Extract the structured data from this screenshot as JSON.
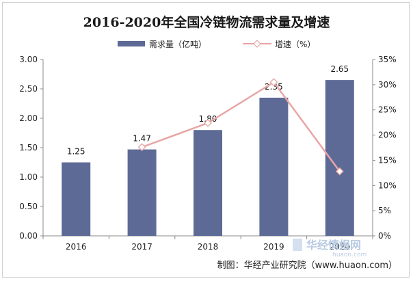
{
  "chart_data": {
    "type": "bar+line",
    "title": "2016-2020年全国冷链物流需求量及增速",
    "categories": [
      "2016",
      "2017",
      "2018",
      "2019",
      "2020"
    ],
    "series": [
      {
        "name": "需求量（亿吨）",
        "type": "bar",
        "axis": "left",
        "values": [
          1.25,
          1.47,
          1.8,
          2.35,
          2.65
        ],
        "labels": [
          "1.25",
          "1.47",
          "1.80",
          "2.35",
          "2.65"
        ],
        "color": "#5e6a96"
      },
      {
        "name": "增速（%）",
        "type": "line",
        "axis": "right",
        "values": [
          null,
          17.6,
          22.4,
          30.5,
          12.8
        ],
        "color": "#e8a5a5"
      }
    ],
    "y_left": {
      "min": 0,
      "max": 3.0,
      "ticks": [
        "0.00",
        "0.50",
        "1.00",
        "1.50",
        "2.00",
        "2.50",
        "3.00"
      ]
    },
    "y_right": {
      "min": 0,
      "max": 35,
      "ticks": [
        "0%",
        "5%",
        "10%",
        "15%",
        "20%",
        "25%",
        "30%",
        "35%"
      ]
    },
    "legend_position": "top",
    "grid": false
  },
  "source_text": "制图：华经产业研究院（www.huaon.com）",
  "watermark": {
    "brand": "华经情报网",
    "url": "huaon.com"
  }
}
